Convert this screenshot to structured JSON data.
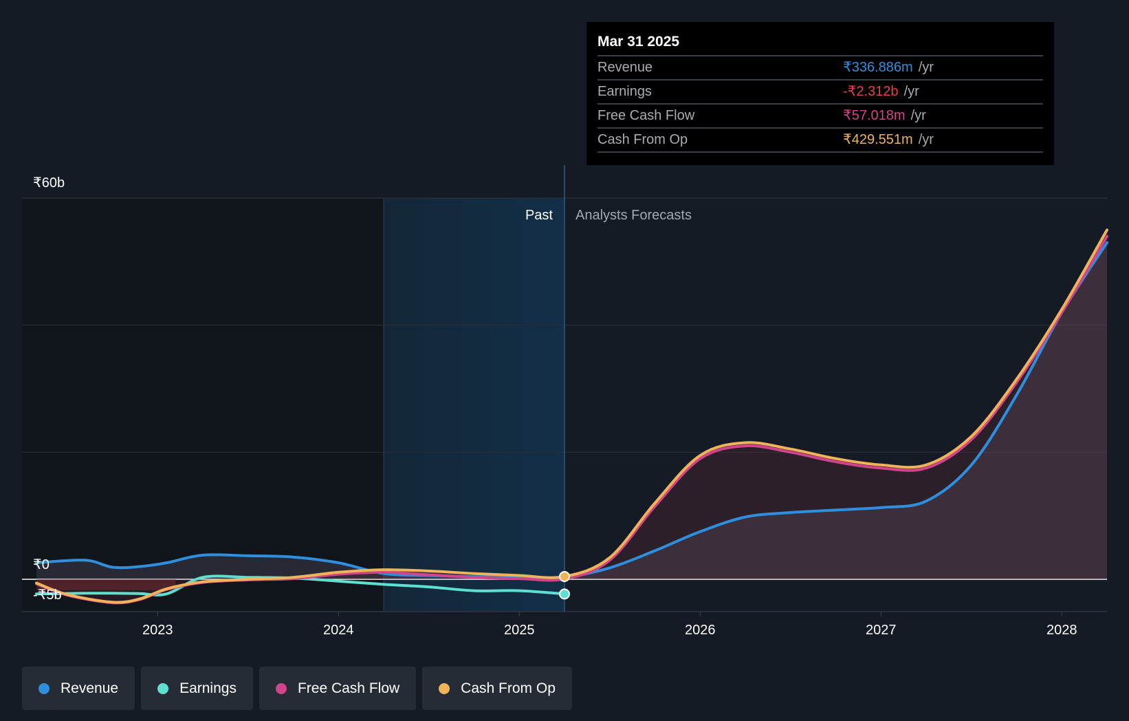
{
  "tooltip": {
    "date": "Mar 31 2025",
    "rows": [
      {
        "name": "Revenue",
        "value": "₹336.886m",
        "unit": "/yr",
        "color": "#2f8fdf"
      },
      {
        "name": "Earnings",
        "value": "-₹2.312b",
        "unit": "/yr",
        "color": "#e8404a"
      },
      {
        "name": "Free Cash Flow",
        "value": "₹57.018m",
        "unit": "/yr",
        "color": "#d0458a"
      },
      {
        "name": "Cash From Op",
        "value": "₹429.551m",
        "unit": "/yr",
        "color": "#f0b35a"
      }
    ]
  },
  "regions": {
    "past": "Past",
    "forecast": "Analysts Forecasts"
  },
  "legend": [
    {
      "label": "Revenue",
      "color": "#2f8fdf"
    },
    {
      "label": "Earnings",
      "color": "#5ee0d0"
    },
    {
      "label": "Free Cash Flow",
      "color": "#d0458a"
    },
    {
      "label": "Cash From Op",
      "color": "#f0b35a"
    }
  ],
  "chart_data": {
    "type": "line",
    "y_tick_labels": [
      "₹60b",
      "₹0",
      "-₹5b"
    ],
    "ylim": [
      -5,
      60
    ],
    "x_ticks": [
      2023,
      2024,
      2025,
      2026,
      2027,
      2028
    ],
    "x_tick_labels": [
      "2023",
      "2024",
      "2025",
      "2026",
      "2027",
      "2028"
    ],
    "xlim": [
      2022.25,
      2028.25
    ],
    "past_end": 2025.25,
    "highlight_start": 2024.25,
    "grid": true,
    "series": [
      {
        "name": "Revenue",
        "color": "#2f8fdf",
        "x": [
          2022.33,
          2022.6,
          2022.75,
          2022.9,
          2023.05,
          2023.25,
          2023.5,
          2023.75,
          2024.0,
          2024.25,
          2024.5,
          2024.75,
          2025.0,
          2025.25,
          2025.5,
          2025.75,
          2026.0,
          2026.25,
          2026.5,
          2026.75,
          2027.0,
          2027.25,
          2027.5,
          2027.75,
          2028.0,
          2028.25
        ],
        "y": [
          2.6,
          3.0,
          1.9,
          2.0,
          2.6,
          3.8,
          3.7,
          3.5,
          2.6,
          0.9,
          0.6,
          0.4,
          0.35,
          0.34,
          1.8,
          4.5,
          7.5,
          9.8,
          10.5,
          10.9,
          11.3,
          12.3,
          18.0,
          29.0,
          42.0,
          53.0
        ]
      },
      {
        "name": "Earnings",
        "color": "#5ee0d0",
        "x": [
          2022.33,
          2022.6,
          2022.75,
          2022.9,
          2023.05,
          2023.25,
          2023.5,
          2023.75,
          2024.0,
          2024.25,
          2024.5,
          2024.75,
          2025.0,
          2025.25
        ],
        "y": [
          -2.3,
          -2.2,
          -2.2,
          -2.25,
          -2.3,
          0.3,
          0.3,
          0.2,
          -0.3,
          -0.8,
          -1.2,
          -1.8,
          -1.8,
          -2.312
        ]
      },
      {
        "name": "Free Cash Flow",
        "color": "#d0458a",
        "x": [
          2022.33,
          2022.5,
          2022.75,
          2022.9,
          2023.05,
          2023.25,
          2023.5,
          2023.75,
          2024.0,
          2024.25,
          2024.5,
          2024.75,
          2025.0,
          2025.25,
          2025.5,
          2025.75,
          2026.0,
          2026.25,
          2026.5,
          2026.75,
          2027.0,
          2027.25,
          2027.5,
          2027.75,
          2028.0,
          2028.25
        ],
        "y": [
          -0.7,
          -2.5,
          -3.7,
          -3.2,
          -1.6,
          -0.5,
          -0.1,
          0.1,
          0.8,
          1.1,
          0.7,
          0.3,
          0.1,
          0.057,
          3.0,
          11.5,
          19.0,
          21.0,
          20.0,
          18.5,
          17.5,
          17.5,
          22.0,
          31.0,
          42.0,
          54.0
        ]
      },
      {
        "name": "Cash From Op",
        "color": "#f0b35a",
        "x": [
          2022.33,
          2022.5,
          2022.75,
          2022.9,
          2023.05,
          2023.25,
          2023.5,
          2023.75,
          2024.0,
          2024.25,
          2024.5,
          2024.75,
          2025.0,
          2025.25,
          2025.5,
          2025.75,
          2026.0,
          2026.25,
          2026.5,
          2026.75,
          2027.0,
          2027.25,
          2027.5,
          2027.75,
          2028.0,
          2028.25
        ],
        "y": [
          -0.6,
          -2.4,
          -3.6,
          -3.1,
          -1.5,
          -0.4,
          0.0,
          0.3,
          1.1,
          1.5,
          1.3,
          0.9,
          0.6,
          0.43,
          3.4,
          12.0,
          19.5,
          21.5,
          20.5,
          19.0,
          18.0,
          18.0,
          22.5,
          31.5,
          42.5,
          55.0
        ]
      }
    ]
  }
}
